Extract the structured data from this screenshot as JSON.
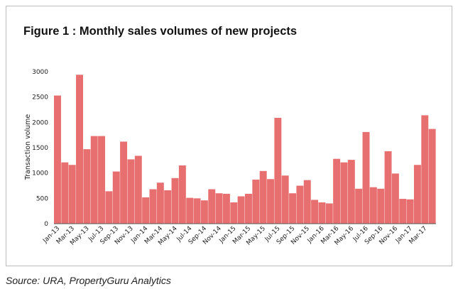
{
  "title": "Figure 1 : Monthly sales volumes of new projects",
  "source": "Source: URA, PropertyGuru Analytics",
  "colors": {
    "bar": "#e86f6f",
    "axis": "#555555"
  },
  "chart_data": {
    "type": "bar",
    "title": "Figure 1 : Monthly sales volumes of new projects",
    "xlabel": "",
    "ylabel": "Transaction volume",
    "ylim": [
      0,
      3000
    ],
    "yticks": [
      0,
      500,
      1000,
      1500,
      2000,
      2500,
      3000
    ],
    "grid": false,
    "categories": [
      "Jan-13",
      "Feb-13",
      "Mar-13",
      "Apr-13",
      "May-13",
      "Jun-13",
      "Jul-13",
      "Aug-13",
      "Sep-13",
      "Oct-13",
      "Nov-13",
      "Dec-13",
      "Jan-14",
      "Feb-14",
      "Mar-14",
      "Apr-14",
      "May-14",
      "Jun-14",
      "Jul-14",
      "Aug-14",
      "Sep-14",
      "Oct-14",
      "Nov-14",
      "Dec-14",
      "Jan-15",
      "Feb-15",
      "Mar-15",
      "Apr-15",
      "May-15",
      "Jun-15",
      "Jul-15",
      "Aug-15",
      "Sep-15",
      "Oct-15",
      "Nov-15",
      "Dec-15",
      "Jan-16",
      "Feb-16",
      "Mar-16",
      "Apr-16",
      "May-16",
      "Jun-16",
      "Jul-16",
      "Aug-16",
      "Sep-16",
      "Oct-16",
      "Nov-16",
      "Dec-16",
      "Jan-17",
      "Feb-17",
      "Mar-17",
      "Apr-17"
    ],
    "tick_labels": [
      "Jan-13",
      "Mar-13",
      "May-13",
      "Jul-13",
      "Sep-13",
      "Nov-13",
      "Jan-14",
      "Mar-14",
      "May-14",
      "Jul-14",
      "Sep-14",
      "Nov-14",
      "Jan-15",
      "Mar-15",
      "May-15",
      "Jul-15",
      "Sep-15",
      "Nov-15",
      "Jan-16",
      "Mar-16",
      "May-16",
      "Jul-16",
      "Sep-16",
      "Nov-16",
      "Jan-17",
      "Mar-17"
    ],
    "values": [
      2530,
      1210,
      1160,
      2940,
      1470,
      1730,
      1730,
      640,
      1030,
      1620,
      1270,
      1340,
      520,
      680,
      810,
      660,
      900,
      1150,
      510,
      500,
      460,
      680,
      600,
      590,
      420,
      540,
      590,
      870,
      1040,
      880,
      2090,
      950,
      600,
      750,
      860,
      470,
      420,
      400,
      1280,
      1210,
      1260,
      690,
      1810,
      720,
      690,
      1430,
      990,
      490,
      480,
      1160,
      2140,
      1870
    ]
  }
}
